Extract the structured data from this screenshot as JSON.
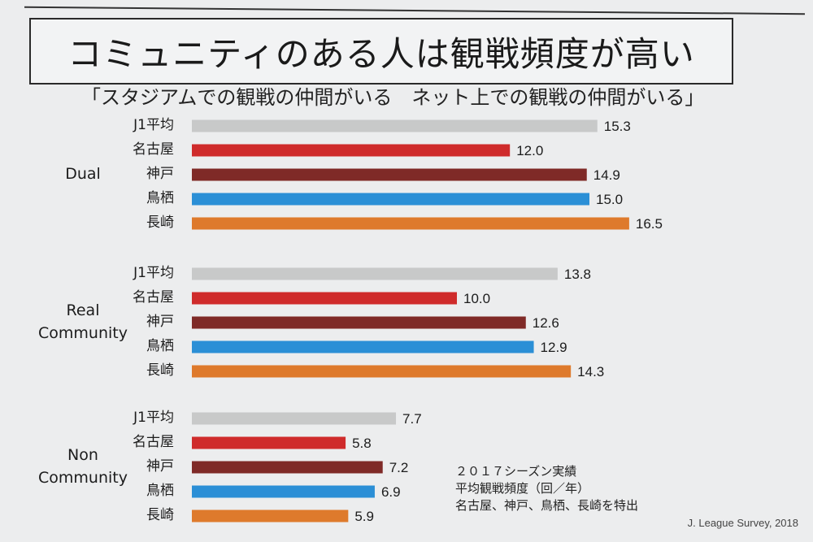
{
  "title": "コミュニティのある人は観戦頻度が高い",
  "subtitle": "「スタジアムでの観戦の仲間がいる　ネット上での観戦の仲間がいる」",
  "note_lines": [
    "２０１７シーズン実績",
    "平均観戦頻度（回／年）",
    "名古屋、神戸、鳥栖、長崎を特出"
  ],
  "source": "J. League Survey, 2018",
  "chart_data": {
    "type": "bar",
    "orientation": "horizontal",
    "categories": [
      "J1平均",
      "名古屋",
      "神戸",
      "鳥栖",
      "長崎"
    ],
    "colors": [
      "#c8c9c9",
      "#cf2b2b",
      "#7f2a27",
      "#2b8fd6",
      "#de7a2c"
    ],
    "groups": [
      {
        "name": "Dual",
        "values": [
          15.3,
          12.0,
          14.9,
          15.0,
          16.5
        ]
      },
      {
        "name": "Real Community",
        "values": [
          13.8,
          10.0,
          12.6,
          12.9,
          14.3
        ]
      },
      {
        "name": "Non Community",
        "values": [
          7.7,
          5.8,
          7.2,
          6.9,
          5.9
        ]
      }
    ],
    "value_labels": [
      [
        "15.3",
        "12.0",
        "14.9",
        "15.0",
        "16.5"
      ],
      [
        "13.8",
        "10.0",
        "12.6",
        "12.9",
        "14.3"
      ],
      [
        "7.7",
        "5.8",
        "7.2",
        "6.9",
        "5.9"
      ]
    ],
    "group_label_lines": [
      [
        "Dual"
      ],
      [
        "Real",
        "Community"
      ],
      [
        "Non",
        "Community"
      ]
    ]
  }
}
